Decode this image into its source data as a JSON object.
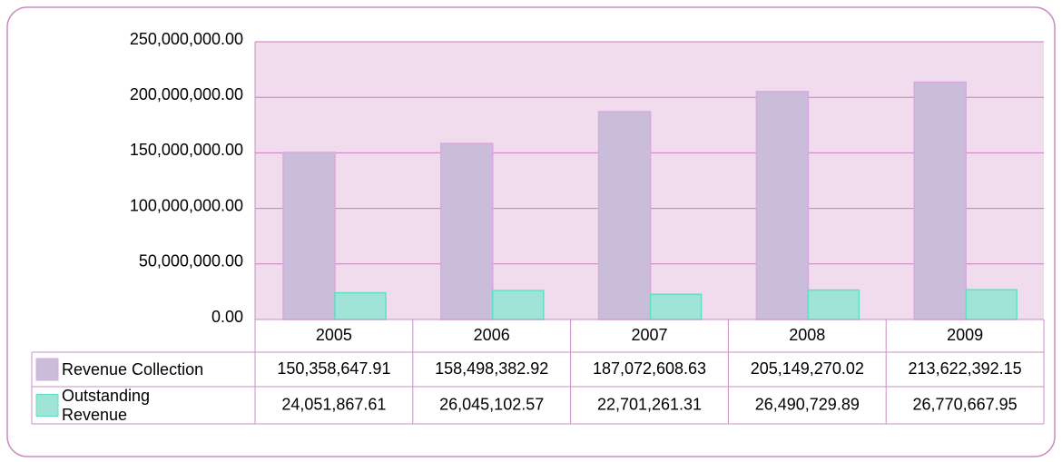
{
  "chart_data": {
    "type": "bar",
    "categories": [
      "2005",
      "2006",
      "2007",
      "2008",
      "2009"
    ],
    "series": [
      {
        "name": "Revenue Collection",
        "color": "#c9bdd9",
        "values": [
          150358647.91,
          158498382.92,
          187072608.63,
          205149270.02,
          213622392.15
        ],
        "value_labels": [
          "150,358,647.91",
          "158,498,382.92",
          "187,072,608.63",
          "205,149,270.02",
          "213,622,392.15"
        ]
      },
      {
        "name": "Outstanding Revenue",
        "color": "#a0e4d8",
        "values": [
          24051867.61,
          26045102.57,
          22701261.31,
          26490729.89,
          26770667.95
        ],
        "value_labels": [
          "24,051,867.61",
          "26,045,102.57",
          "22,701,261.31",
          "26,490,729.89",
          "26,770,667.95"
        ]
      }
    ],
    "ylim": [
      0,
      250000000
    ],
    "yticks": [
      {
        "value": 0,
        "label": "0.00"
      },
      {
        "value": 50000000,
        "label": "50,000,000.00"
      },
      {
        "value": 100000000,
        "label": "100,000,000.00"
      },
      {
        "value": 150000000,
        "label": "150,000,000.00"
      },
      {
        "value": 200000000,
        "label": "200,000,000.00"
      },
      {
        "value": 250000000,
        "label": "250,000,000.00"
      }
    ],
    "grid": true
  }
}
